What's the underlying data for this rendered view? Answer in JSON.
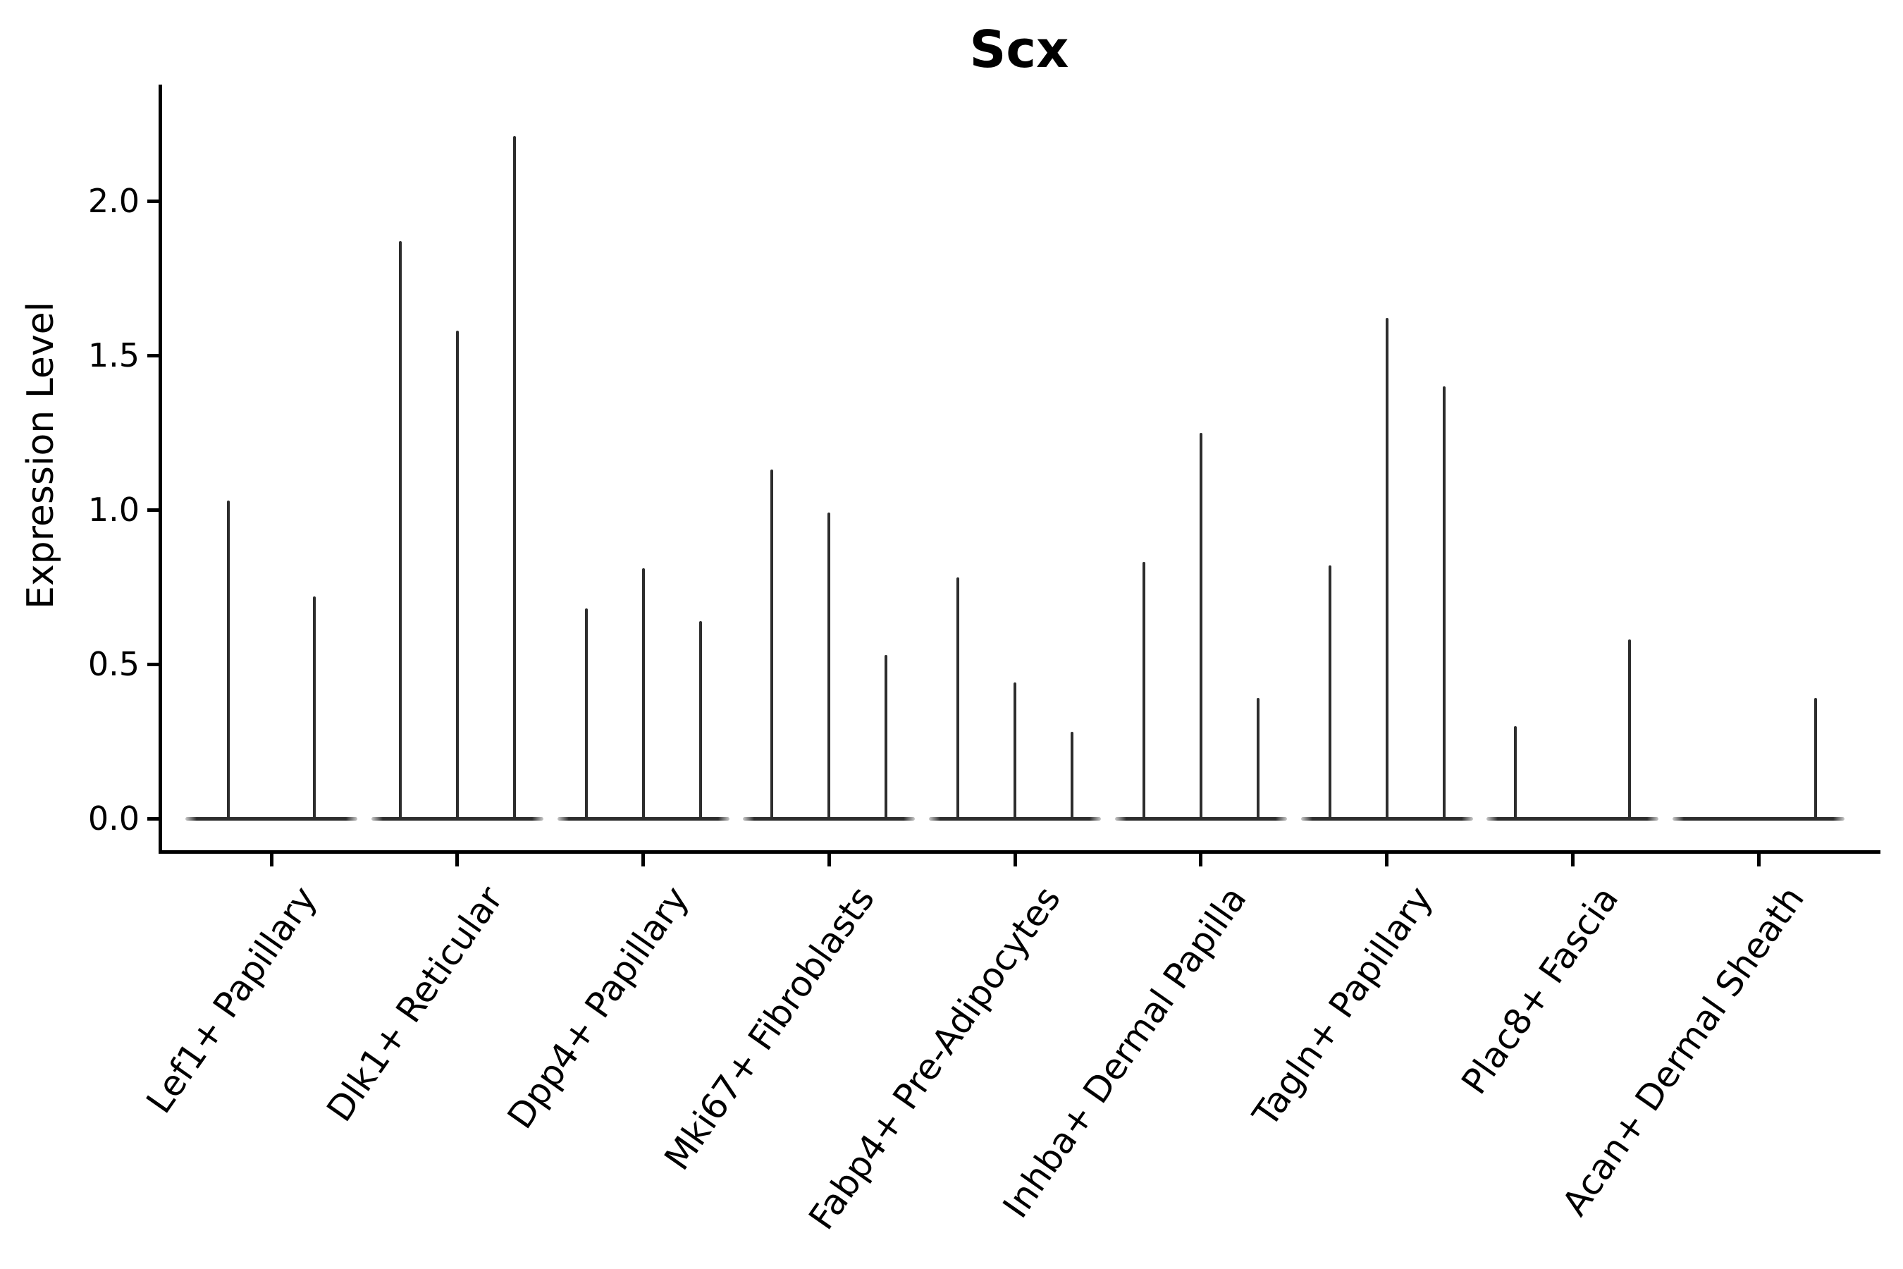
{
  "title": "Scx",
  "axes": {
    "y_label": "Expression Level",
    "y_ticks": [
      {
        "label": "0.0",
        "value": 0.0
      },
      {
        "label": "0.5",
        "value": 0.5
      },
      {
        "label": "1.0",
        "value": 1.0
      },
      {
        "label": "1.5",
        "value": 1.5
      },
      {
        "label": "2.0",
        "value": 2.0
      }
    ]
  },
  "chart_data": {
    "type": "violin",
    "title": "Scx",
    "xlabel": "",
    "ylabel": "Expression Level",
    "ylim": [
      -0.11,
      2.38
    ],
    "grid": false,
    "legend": "none",
    "line_color": "#2d2d2d",
    "note": "Each cluster shows thin spike-shaped violins (collapsed at 0 with a narrow density spike); values are spike maxima in expression-level units.",
    "categories": [
      "Lef1+ Papillary",
      "Dlk1+ Reticular",
      "Dpp4+ Papillary",
      "Mki67+ Fibroblasts",
      "Fabp4+ Pre-Adipocytes",
      "Inhba+ Dermal Papilla",
      "Tagln+ Papillary",
      "Plac8+ Fascia",
      "Acan+ Dermal Sheath"
    ],
    "clusters": [
      {
        "label": "Lef1+ Papillary",
        "n_positions": 2,
        "spikes": [
          {
            "position": 1,
            "value": 1.03
          },
          {
            "position": 2,
            "value": 0.72
          }
        ]
      },
      {
        "label": "Dlk1+ Reticular",
        "n_positions": 3,
        "spikes": [
          {
            "position": 1,
            "value": 1.87
          },
          {
            "position": 2,
            "value": 1.58
          },
          {
            "position": 3,
            "value": 2.21
          }
        ]
      },
      {
        "label": "Dpp4+ Papillary",
        "n_positions": 3,
        "spikes": [
          {
            "position": 1,
            "value": 0.68
          },
          {
            "position": 2,
            "value": 0.81
          },
          {
            "position": 3,
            "value": 0.64
          }
        ]
      },
      {
        "label": "Mki67+ Fibroblasts",
        "n_positions": 3,
        "spikes": [
          {
            "position": 1,
            "value": 1.13
          },
          {
            "position": 2,
            "value": 0.99
          },
          {
            "position": 3,
            "value": 0.53
          }
        ]
      },
      {
        "label": "Fabp4+ Pre-Adipocytes",
        "n_positions": 3,
        "spikes": [
          {
            "position": 1,
            "value": 0.78
          },
          {
            "position": 2,
            "value": 0.44
          },
          {
            "position": 3,
            "value": 0.28
          }
        ]
      },
      {
        "label": "Inhba+ Dermal Papilla",
        "n_positions": 3,
        "spikes": [
          {
            "position": 1,
            "value": 0.83
          },
          {
            "position": 2,
            "value": 1.25
          },
          {
            "position": 3,
            "value": 0.39
          }
        ]
      },
      {
        "label": "Tagln+ Papillary",
        "n_positions": 3,
        "spikes": [
          {
            "position": 1,
            "value": 0.82
          },
          {
            "position": 2,
            "value": 1.62
          },
          {
            "position": 3,
            "value": 1.4
          }
        ]
      },
      {
        "label": "Plac8+ Fascia",
        "n_positions": 3,
        "spikes": [
          {
            "position": 1,
            "value": 0.3
          },
          {
            "position": 3,
            "value": 0.58
          }
        ]
      },
      {
        "label": "Acan+ Dermal Sheath",
        "n_positions": 3,
        "spikes": [
          {
            "position": 3,
            "value": 0.39
          }
        ]
      }
    ]
  }
}
